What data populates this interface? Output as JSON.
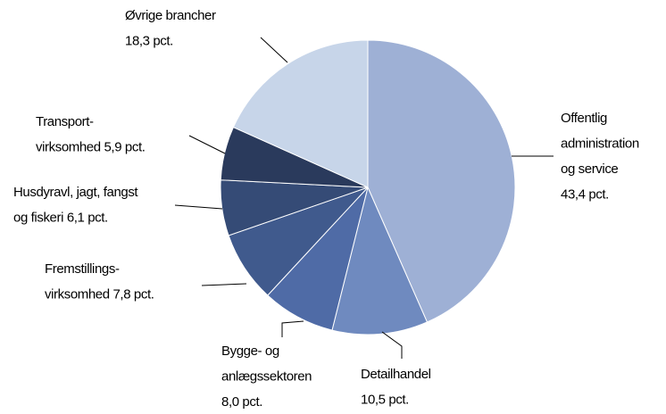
{
  "chart_data": {
    "type": "pie",
    "categories": [
      [
        "Offentlig",
        "administration",
        "og service"
      ],
      [
        "Detailhandel"
      ],
      [
        "Bygge- og",
        "anlægssektoren"
      ],
      [
        "Fremstillings-",
        "virksomhed"
      ],
      [
        "Husdyravl, jagt, fangst",
        "og fiskeri"
      ],
      [
        "Transport-",
        "virksomhed"
      ],
      [
        "Øvrige brancher"
      ]
    ],
    "values": [
      43.4,
      10.5,
      8.0,
      7.8,
      6.1,
      5.9,
      18.3
    ],
    "value_labels": [
      "43,4 pct.",
      "10,5 pct.",
      "8,0 pct.",
      "7,8 pct.",
      "6,1 pct.",
      "5,9 pct.",
      "18,3 pct."
    ],
    "colors": [
      "#9eb0d5",
      "#6f8abf",
      "#4f6ba6",
      "#405a8d",
      "#354b76",
      "#2a3a5c",
      "#c7d5e9"
    ]
  }
}
